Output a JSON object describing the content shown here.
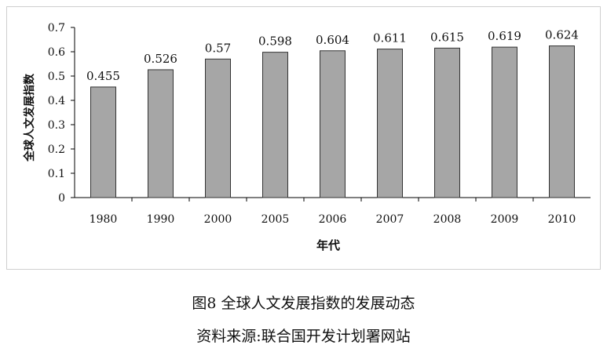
{
  "chart_data": {
    "type": "bar",
    "categories": [
      "1980",
      "1990",
      "2000",
      "2005",
      "2006",
      "2007",
      "2008",
      "2009",
      "2010"
    ],
    "values": [
      0.455,
      0.526,
      0.57,
      0.598,
      0.604,
      0.611,
      0.615,
      0.619,
      0.624
    ],
    "data_labels": [
      "0.455",
      "0.526",
      "0.57",
      "0.598",
      "0.604",
      "0.611",
      "0.615",
      "0.619",
      "0.624"
    ],
    "xlabel": "年代",
    "ylabel": "全球人文发展指数",
    "ylim": [
      0,
      0.7
    ],
    "yticks": [
      "0",
      "0.1",
      "0.2",
      "0.3",
      "0.4",
      "0.5",
      "0.6",
      "0.7"
    ],
    "grid": false,
    "bar_color": "#a6a6a6"
  },
  "captions": {
    "figure": "图8  全球人文发展指数的发展动态",
    "source": "资料来源:联合国开发计划署网站"
  }
}
